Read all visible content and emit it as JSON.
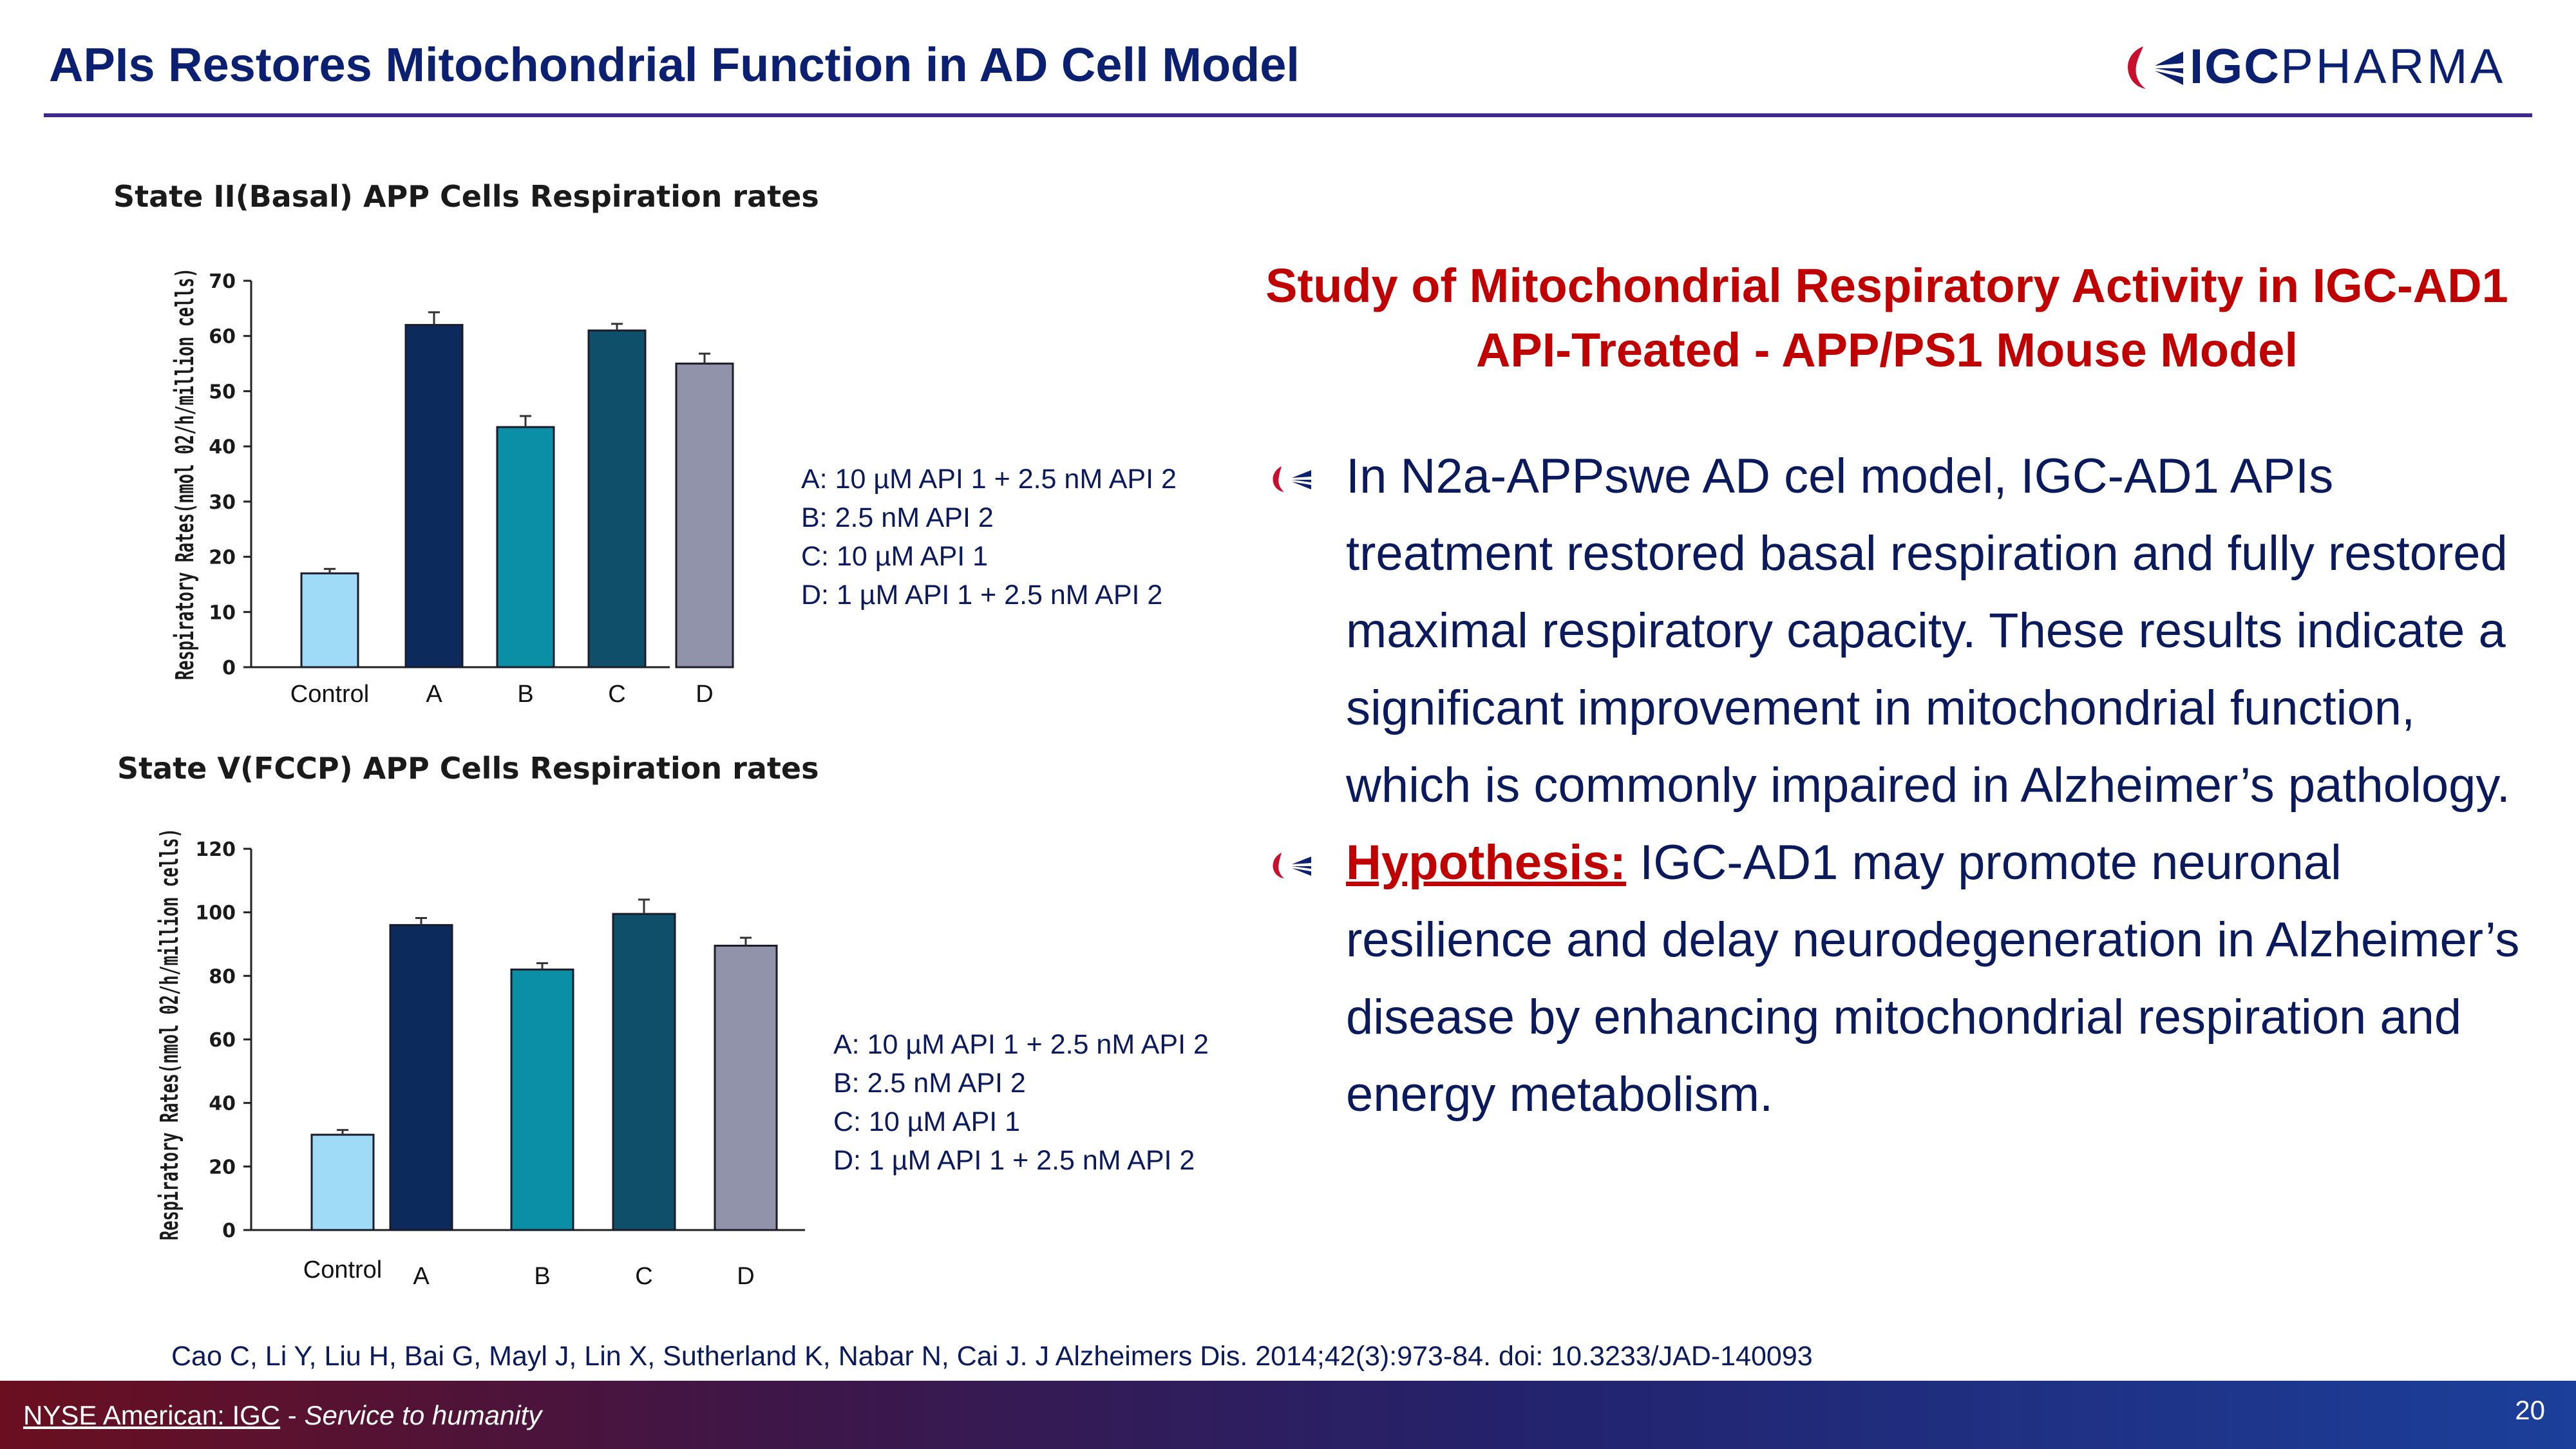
{
  "header": {
    "title": "APIs Restores Mitochondrial Function in AD Cell Model",
    "logo_text_bold": "IGC",
    "logo_text_light": "PHARMA"
  },
  "chart_data": [
    {
      "type": "bar",
      "title": "State II(Basal) APP Cells  Respiration rates",
      "ylabel": "Respiratory Rates(nmol 02/h/million cells)",
      "xlabel": "",
      "categories": [
        "Control",
        "A",
        "B",
        "C",
        "D"
      ],
      "values": [
        17,
        62,
        43.5,
        61,
        55
      ],
      "errors": [
        0.8,
        2.3,
        2.0,
        1.2,
        1.8
      ],
      "ylim": [
        0,
        70
      ],
      "yticks": [
        0,
        10,
        20,
        30,
        40,
        50,
        60,
        70
      ],
      "colors": [
        "#9fdbf7",
        "#0c2a5c",
        "#0a8fa6",
        "#0f4f6a",
        "#9193ab"
      ],
      "grid": false
    },
    {
      "type": "bar",
      "title": "State V(FCCP) APP Cells  Respiration rates",
      "ylabel": "Respiratory Rates(nmol 02/h/million cells)",
      "xlabel": "",
      "categories": [
        "Control",
        "A",
        "B",
        "C",
        "D"
      ],
      "values": [
        30,
        96,
        82,
        99.5,
        89.5
      ],
      "errors": [
        1.5,
        2.2,
        2.0,
        4.5,
        2.5
      ],
      "ylim": [
        0,
        120
      ],
      "yticks": [
        0,
        20,
        40,
        60,
        80,
        100,
        120
      ],
      "colors": [
        "#9fdbf7",
        "#0c2a5c",
        "#0a8fa6",
        "#0f4f6a",
        "#9193ab"
      ],
      "grid": false
    }
  ],
  "legend_top": [
    "A: 10 µM API 1 + 2.5 nM API 2",
    "B: 2.5 nM API 2",
    "C: 10 µM API 1",
    "D: 1 µM API 1 + 2.5 nM API 2"
  ],
  "legend_bottom": [
    "A: 10 µM API 1 + 2.5 nM API 2",
    "B: 2.5 nM API 2",
    "C: 10 µM API 1",
    "D: 1 µM API 1 + 2.5 nM API 2"
  ],
  "study": {
    "heading": "Study of Mitochondrial Respiratory Activity in IGC-AD1 API-Treated -  APP/PS1 Mouse Model",
    "bullet1": "In N2a-APPswe AD cel model, IGC-AD1 APIs treatment restored basal respiration and fully restored maximal respiratory capacity. These results indicate a significant improvement in mitochondrial function, which is commonly impaired in Alzheimer’s pathology.",
    "bullet2_label": "Hypothesis:",
    "bullet2_text": " IGC-AD1 may promote neuronal resilience and delay neurodegeneration in Alzheimer’s disease by enhancing mitochondrial respiration and energy metabolism."
  },
  "citation": "Cao C, Li Y, Liu H, Bai G, Mayl J, Lin X, Sutherland K, Nabar N, Cai J. J Alzheimers Dis. 2014;42(3):973-84. doi: 10.3233/JAD-140093",
  "footer": {
    "ticker": "NYSE American:  IGC",
    "separator": " - ",
    "tagline": "Service to humanity",
    "page_number": "20"
  },
  "colors": {
    "title": "#0b2070",
    "accent_red": "#c00000",
    "rule": "#3d2a8c"
  }
}
